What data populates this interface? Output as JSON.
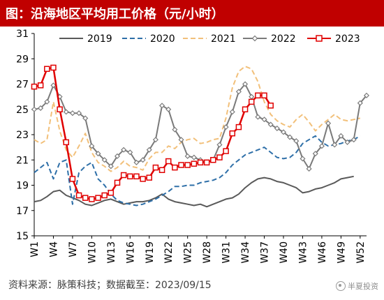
{
  "header": {
    "title": "图：沿海地区平均用工价格（元/小时）"
  },
  "footer": {
    "source": "资料来源：脉策科技；数据截至：2023/09/15",
    "watermark": "半夏投资"
  },
  "colors": {
    "title_bg": "#c00000",
    "s2019": "#595959",
    "s2020": "#2e6fa8",
    "s2021": "#f2c07a",
    "s2022": "#7a7a7a",
    "s2023": "#e00000"
  },
  "chart_data": {
    "type": "line",
    "title": "沿海地区平均用工价格（元/小时）",
    "xlabel": "",
    "ylabel": "",
    "ylim": [
      15,
      31
    ],
    "yticks": [
      "15",
      "17",
      "19",
      "21",
      "23",
      "25",
      "27",
      "29",
      "31"
    ],
    "xlim": [
      1,
      53
    ],
    "xticks": [
      "W1",
      "W4",
      "W7",
      "W10",
      "W13",
      "W16",
      "W19",
      "W22",
      "W25",
      "W28",
      "W31",
      "W34",
      "W37",
      "W40",
      "W43",
      "W46",
      "W49",
      "W52"
    ],
    "xtick_weeks": [
      1,
      4,
      7,
      10,
      13,
      16,
      19,
      22,
      25,
      28,
      31,
      34,
      37,
      40,
      43,
      46,
      49,
      52
    ],
    "grid": false,
    "legend": "top",
    "series": [
      {
        "name": "2019",
        "color": "#595959",
        "style": "solid",
        "x": [
          1,
          2,
          3,
          4,
          5,
          6,
          7,
          8,
          9,
          10,
          11,
          12,
          13,
          14,
          15,
          16,
          17,
          18,
          19,
          20,
          21,
          22,
          23,
          24,
          25,
          26,
          27,
          28,
          29,
          30,
          31,
          32,
          33,
          34,
          35,
          36,
          37,
          38,
          39,
          40,
          41,
          42,
          43,
          44,
          45,
          46,
          47,
          48,
          49,
          50,
          51
        ],
        "y": [
          17.7,
          17.8,
          18.1,
          18.5,
          18.6,
          18.2,
          18.0,
          17.8,
          17.5,
          17.4,
          17.6,
          17.8,
          17.9,
          17.7,
          17.5,
          17.6,
          17.7,
          17.7,
          17.8,
          18.0,
          18.3,
          17.9,
          17.7,
          17.6,
          17.5,
          17.4,
          17.5,
          17.3,
          17.5,
          17.7,
          17.9,
          18.0,
          18.3,
          18.8,
          19.2,
          19.5,
          19.6,
          19.5,
          19.3,
          19.2,
          19.0,
          18.8,
          18.4,
          18.5,
          18.7,
          18.8,
          19.0,
          19.2,
          19.5,
          19.6,
          19.7
        ]
      },
      {
        "name": "2020",
        "color": "#2e6fa8",
        "style": "dashed",
        "x": [
          1,
          2,
          3,
          4,
          5,
          6,
          7,
          8,
          9,
          10,
          11,
          12,
          13,
          14,
          15,
          16,
          17,
          18,
          19,
          20,
          21,
          22,
          23,
          24,
          25,
          26,
          27,
          28,
          29,
          30,
          31,
          32,
          33,
          34,
          35,
          36,
          37,
          38,
          39,
          40,
          41,
          42,
          43,
          44,
          45,
          46,
          47,
          48,
          49,
          50,
          51,
          52
        ],
        "y": [
          20.0,
          20.4,
          20.8,
          19.5,
          20.8,
          21.0,
          17.5,
          20.0,
          20.5,
          20.8,
          19.5,
          19.0,
          18.3,
          17.8,
          17.6,
          17.5,
          17.4,
          17.5,
          17.7,
          17.9,
          18.2,
          18.5,
          18.9,
          18.9,
          19.0,
          19.0,
          19.2,
          19.3,
          19.4,
          19.6,
          20.0,
          20.6,
          21.0,
          21.4,
          21.6,
          21.8,
          22.0,
          21.6,
          21.2,
          21.1,
          21.2,
          21.6,
          22.3,
          22.6,
          22.9,
          22.4,
          22.1,
          22.2,
          22.3,
          22.5,
          22.6,
          22.9
        ]
      },
      {
        "name": "2021",
        "color": "#f2c07a",
        "style": "dashed",
        "x": [
          1,
          2,
          3,
          4,
          5,
          6,
          7,
          8,
          9,
          10,
          11,
          12,
          13,
          14,
          15,
          16,
          17,
          18,
          19,
          20,
          21,
          22,
          23,
          24,
          25,
          26,
          27,
          28,
          29,
          30,
          31,
          32,
          33,
          34,
          35,
          36,
          37,
          38,
          39,
          40,
          41,
          42,
          43,
          44,
          45,
          46,
          47,
          48,
          49,
          50,
          51,
          52
        ],
        "y": [
          22.6,
          22.3,
          22.6,
          25.6,
          23.3,
          21.8,
          21.2,
          22.1,
          23.1,
          21.6,
          20.8,
          20.5,
          20.1,
          20.4,
          20.9,
          20.5,
          20.4,
          20.2,
          21.1,
          21.6,
          21.6,
          22.1,
          21.9,
          22.4,
          22.6,
          22.7,
          22.3,
          22.4,
          22.6,
          22.7,
          24.3,
          26.7,
          28.0,
          28.4,
          28.2,
          27.2,
          25.6,
          24.6,
          24.1,
          23.8,
          23.6,
          24.2,
          24.6,
          24.0,
          23.3,
          23.8,
          24.2,
          24.6,
          24.2,
          24.1,
          24.2,
          24.3
        ]
      },
      {
        "name": "2022",
        "color": "#7a7a7a",
        "style": "diamond",
        "x": [
          1,
          2,
          3,
          4,
          5,
          6,
          7,
          8,
          9,
          10,
          11,
          12,
          13,
          14,
          15,
          16,
          17,
          18,
          19,
          20,
          21,
          22,
          23,
          24,
          25,
          26,
          27,
          28,
          29,
          30,
          31,
          32,
          33,
          34,
          35,
          36,
          37,
          38,
          39,
          40,
          41,
          42,
          43,
          44,
          45,
          46,
          47,
          48,
          49,
          50,
          51,
          52,
          53
        ],
        "y": [
          25.0,
          25.1,
          25.6,
          26.9,
          26.0,
          24.8,
          24.7,
          24.7,
          24.3,
          22.1,
          21.5,
          21.0,
          20.5,
          21.3,
          21.8,
          21.6,
          20.8,
          21.0,
          21.8,
          22.6,
          25.3,
          25.0,
          23.4,
          22.6,
          21.3,
          21.2,
          21.0,
          20.8,
          21.0,
          22.2,
          23.6,
          24.8,
          26.4,
          27.0,
          26.0,
          24.4,
          24.2,
          23.8,
          23.5,
          23.2,
          22.8,
          22.5,
          21.1,
          20.3,
          21.5,
          22.1,
          23.9,
          22.2,
          22.9,
          22.4,
          22.6,
          25.5,
          26.1
        ]
      },
      {
        "name": "2023",
        "color": "#e00000",
        "style": "square",
        "x": [
          1,
          2,
          3,
          4,
          5,
          6,
          7,
          8,
          9,
          10,
          11,
          12,
          13,
          14,
          15,
          16,
          17,
          18,
          19,
          20,
          21,
          22,
          23,
          24,
          25,
          26,
          27,
          28,
          29,
          30,
          31,
          32,
          33,
          34,
          35,
          36,
          37,
          38
        ],
        "y": [
          26.8,
          26.9,
          28.2,
          28.3,
          25.0,
          22.4,
          19.5,
          18.2,
          18.0,
          17.9,
          18.0,
          18.2,
          18.4,
          19.2,
          19.8,
          19.7,
          19.7,
          19.5,
          19.6,
          20.4,
          20.2,
          20.9,
          20.4,
          20.6,
          20.6,
          20.7,
          20.8,
          20.8,
          21.0,
          21.2,
          21.7,
          23.1,
          23.6,
          25.0,
          25.6,
          26.1,
          26.1,
          25.3
        ]
      }
    ]
  }
}
